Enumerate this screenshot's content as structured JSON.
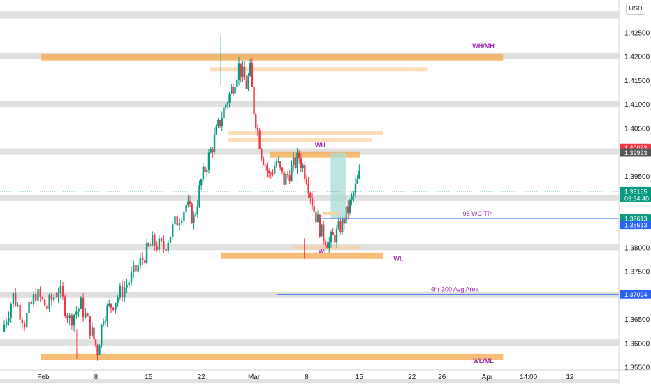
{
  "currency": "USD",
  "chart_data": {
    "type": "candlestick",
    "symbol_quote": "USD",
    "ylim": [
      1.3515,
      1.4315
    ],
    "y_ticks": [
      "1.42500",
      "1.42000",
      "1.41500",
      "1.41000",
      "1.40500",
      "1.40000",
      "1.39500",
      "1.39000",
      "1.38500",
      "1.38000",
      "1.37500",
      "1.37000",
      "1.36500",
      "1.36000",
      "1.35500"
    ],
    "x_ticks": [
      {
        "label": "Feb",
        "day": 0
      },
      {
        "label": "8",
        "day": 7
      },
      {
        "label": "15",
        "day": 14
      },
      {
        "label": "22",
        "day": 21
      },
      {
        "label": "Mar",
        "day": 28
      },
      {
        "label": "8",
        "day": 35
      },
      {
        "label": "15",
        "day": 42
      },
      {
        "label": "22",
        "day": 49
      },
      {
        "label": "26",
        "day": 53
      },
      {
        "label": "Apr",
        "day": 59
      },
      {
        "label": "14:00",
        "day": 64.5
      },
      {
        "label": "12",
        "day": 70
      }
    ],
    "candles_path": [
      [
        -5.5,
        1.3625
      ],
      [
        -4.0,
        1.37
      ],
      [
        -2.5,
        1.3645
      ],
      [
        -1.0,
        1.3705
      ],
      [
        0.5,
        1.3675
      ],
      [
        2.0,
        1.3715
      ],
      [
        3.5,
        1.365
      ],
      [
        5.0,
        1.368
      ],
      [
        6.5,
        1.362
      ],
      [
        7.2,
        1.3585
      ],
      [
        8.0,
        1.366
      ],
      [
        9.0,
        1.368
      ],
      [
        10.5,
        1.371
      ],
      [
        12.0,
        1.3745
      ],
      [
        13.5,
        1.3785
      ],
      [
        14.5,
        1.381
      ],
      [
        16.0,
        1.38
      ],
      [
        17.5,
        1.385
      ],
      [
        19.0,
        1.389
      ],
      [
        20.0,
        1.386
      ],
      [
        21.0,
        1.394
      ],
      [
        22.0,
        1.399
      ],
      [
        23.0,
        1.404
      ],
      [
        24.0,
        1.409
      ],
      [
        25.0,
        1.413
      ],
      [
        26.0,
        1.418
      ],
      [
        26.5,
        1.416
      ],
      [
        27.0,
        1.414
      ],
      [
        27.5,
        1.417
      ],
      [
        28.0,
        1.409
      ],
      [
        29.0,
        1.4
      ],
      [
        30.0,
        1.395
      ],
      [
        31.0,
        1.398
      ],
      [
        32.0,
        1.394
      ],
      [
        33.0,
        1.3965
      ],
      [
        34.0,
        1.399
      ],
      [
        35.0,
        1.395
      ],
      [
        36.0,
        1.388
      ],
      [
        37.0,
        1.383
      ],
      [
        38.0,
        1.381
      ],
      [
        39.0,
        1.383
      ],
      [
        40.0,
        1.386
      ],
      [
        41.0,
        1.39
      ],
      [
        42.0,
        1.395
      ],
      [
        43.0,
        1.399
      ],
      [
        43.5,
        1.397
      ],
      [
        44.0,
        1.387
      ],
      [
        44.5,
        1.391
      ]
    ],
    "price_labels": [
      {
        "value": "1.40093",
        "price": 1.40093,
        "color": "#f23645"
      },
      {
        "value": "1.39993",
        "price": 1.39993,
        "color": "#555555"
      },
      {
        "value": "1.39185",
        "price": 1.39185,
        "color": "#089981",
        "sub": "03:34:40"
      },
      {
        "value": "1.38613",
        "price": 1.38613,
        "color": "#089981"
      },
      {
        "value": "1.38613",
        "price": 1.3848,
        "color": "#2962ff"
      },
      {
        "value": "1.37024",
        "price": 1.37024,
        "color": "#2962ff"
      }
    ],
    "gray_zones": [
      {
        "y1": 1.4295,
        "y2": 1.428
      },
      {
        "y1": 1.4208,
        "y2": 1.4195
      },
      {
        "y1": 1.4108,
        "y2": 1.4095
      },
      {
        "y1": 1.4008,
        "y2": 1.3995
      },
      {
        "y1": 1.391,
        "y2": 1.3898
      },
      {
        "y1": 1.3808,
        "y2": 1.3795
      },
      {
        "y1": 1.3708,
        "y2": 1.3695
      },
      {
        "y1": 1.3608,
        "y2": 1.3595
      },
      {
        "y1": 1.3525,
        "y2": 1.3518
      }
    ],
    "orange_zones": [
      {
        "d1": 0.0,
        "d2": 61.5,
        "y1": 1.4205,
        "y2": 1.4196,
        "strong": true
      },
      {
        "d1": 22.5,
        "d2": 51.5,
        "y1": 1.4178,
        "y2": 1.417,
        "strong": false
      },
      {
        "d1": 25.0,
        "d2": 45.5,
        "y1": 1.4044,
        "y2": 1.4036,
        "strong": false
      },
      {
        "d1": 25.0,
        "d2": 44.0,
        "y1": 1.403,
        "y2": 1.4025,
        "strong": false
      },
      {
        "d1": 30.5,
        "d2": 42.5,
        "y1": 1.4002,
        "y2": 1.3994,
        "strong": true
      },
      {
        "d1": 33.5,
        "d2": 42.5,
        "y1": 1.3805,
        "y2": 1.3801,
        "strong": false
      },
      {
        "d1": 24.0,
        "d2": 45.5,
        "y1": 1.379,
        "y2": 1.3783,
        "strong": true
      },
      {
        "d1": 0.0,
        "d2": 61.5,
        "y1": 1.3578,
        "y2": 1.3568,
        "strong": true
      }
    ],
    "horizontal_rays": [
      {
        "d1": 37.0,
        "price": 1.38613,
        "label": "98 WC TP"
      },
      {
        "d1": 31.0,
        "price": 1.37024,
        "label": "4hr 300 Avg Area"
      }
    ],
    "position_box": {
      "d1": 38.2,
      "d2": 40.2,
      "top": 1.3999,
      "bottom": 1.38613
    },
    "entry_marker": {
      "d1": 37.2,
      "d2": 39.3,
      "price": 1.3872
    },
    "annotations": [
      {
        "text": "WH/MH",
        "day": 58.5,
        "price": 1.4218
      },
      {
        "text": "WH",
        "day": 36.8,
        "price": 1.401
      },
      {
        "text": "WL",
        "day": 37.2,
        "price": 1.3788
      },
      {
        "text": "WL",
        "day": 47.2,
        "price": 1.3773
      },
      {
        "text": "WL/ML",
        "day": 58.5,
        "price": 1.3559
      }
    ],
    "colors": {
      "up": "#089981",
      "down": "#f23645",
      "orange_strong": "#f5a84a",
      "orange_light": "#fbd29c",
      "gray_zone": "#e0e0e0",
      "ray": "#2962ff",
      "annotation": "#9c27b0",
      "position_box": "#a9dcd7"
    }
  }
}
